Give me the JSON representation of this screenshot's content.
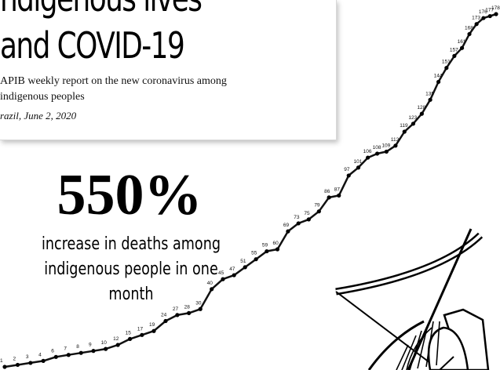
{
  "header": {
    "title_line1": "ndigenous lives",
    "title_line2": "and COVID-19",
    "subtitle": "APIB weekly report on the new coronavirus among indigenous peoples",
    "dateline": "razil, June 2, 2020"
  },
  "headline": {
    "percent": "550%",
    "caption": "increase in deaths among indigenous people in one month"
  },
  "chart_data": {
    "type": "line",
    "values": [
      1,
      2,
      3,
      4,
      6,
      7,
      8,
      9,
      10,
      12,
      15,
      17,
      19,
      24,
      27,
      28,
      30,
      40,
      45,
      47,
      51,
      55,
      59,
      60,
      69,
      73,
      75,
      79,
      86,
      87,
      97,
      101,
      106,
      108,
      109,
      112,
      119,
      123,
      128,
      135,
      144,
      151,
      157,
      161,
      168,
      173,
      176,
      177,
      178
    ],
    "xlabel": "",
    "ylabel": ""
  },
  "colors": {
    "line": "#111111",
    "text": "#000000",
    "background": "#ffffff"
  }
}
